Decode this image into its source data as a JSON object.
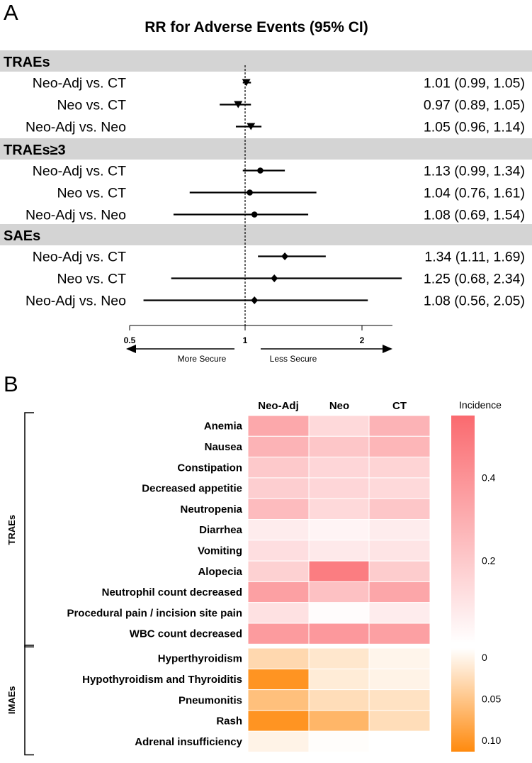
{
  "chart_data": [
    {
      "type": "forest",
      "panel": "A",
      "title": "RR for Adverse Events (95% CI)",
      "xlim": [
        0.5,
        2.25
      ],
      "ticks": [
        "0.5",
        "1",
        "2"
      ],
      "tick_values": [
        0.5,
        1,
        2
      ],
      "reference_line": 1,
      "direction_labels": {
        "left": "More Secure",
        "right": "Less Secure"
      },
      "groups": [
        {
          "name": "TRAEs",
          "marker": "triangle",
          "rows": [
            {
              "label": "Neo-Adj vs. CT",
              "rr": 1.01,
              "lo": 0.99,
              "hi": 1.05,
              "text": "1.01 (0.99, 1.05)"
            },
            {
              "label": "Neo vs. CT",
              "rr": 0.97,
              "lo": 0.89,
              "hi": 1.05,
              "text": "0.97 (0.89, 1.05)"
            },
            {
              "label": "Neo-Adj vs. Neo",
              "rr": 1.05,
              "lo": 0.96,
              "hi": 1.14,
              "text": "1.05 (0.96, 1.14)"
            }
          ]
        },
        {
          "name": "TRAEs≥3",
          "marker": "circle",
          "rows": [
            {
              "label": "Neo-Adj vs. CT",
              "rr": 1.13,
              "lo": 0.99,
              "hi": 1.34,
              "text": "1.13 (0.99, 1.34)"
            },
            {
              "label": "Neo vs. CT",
              "rr": 1.04,
              "lo": 0.76,
              "hi": 1.61,
              "text": "1.04 (0.76, 1.61)"
            },
            {
              "label": "Neo-Adj vs. Neo",
              "rr": 1.08,
              "lo": 0.69,
              "hi": 1.54,
              "text": "1.08 (0.69, 1.54)"
            }
          ]
        },
        {
          "name": "SAEs",
          "marker": "diamond",
          "rows": [
            {
              "label": "Neo-Adj vs. CT",
              "rr": 1.34,
              "lo": 1.11,
              "hi": 1.69,
              "text": "1.34 (1.11, 1.69)"
            },
            {
              "label": "Neo vs. CT",
              "rr": 1.25,
              "lo": 0.68,
              "hi": 2.34,
              "text": "1.25 (0.68, 2.34)"
            },
            {
              "label": "Neo-Adj vs. Neo",
              "rr": 1.08,
              "lo": 0.56,
              "hi": 2.05,
              "text": "1.08 (0.56, 2.05)"
            }
          ]
        }
      ]
    },
    {
      "type": "heatmap",
      "panel": "B",
      "columns": [
        "Neo-Adj",
        "Neo",
        "CT"
      ],
      "legend_title": "Incidence",
      "blocks": [
        {
          "name": "TRAEs",
          "color_low": "#ffffff",
          "color_high": "#fa6a6f",
          "scale_max": 0.55,
          "legend_ticks": [
            "0.4",
            "0.2"
          ],
          "legend_tick_values": [
            0.4,
            0.2
          ],
          "rows": [
            {
              "label": "Anemia",
              "values": [
                0.32,
                0.14,
                0.28
              ]
            },
            {
              "label": "Nausea",
              "values": [
                0.28,
                0.21,
                0.27
              ]
            },
            {
              "label": "Constipation",
              "values": [
                0.2,
                0.15,
                0.16
              ]
            },
            {
              "label": "Decreased appetitie",
              "values": [
                0.18,
                0.15,
                0.14
              ]
            },
            {
              "label": "Neutropenia",
              "values": [
                0.25,
                0.14,
                0.21
              ]
            },
            {
              "label": "Diarrhea",
              "values": [
                0.07,
                0.04,
                0.07
              ]
            },
            {
              "label": "Vomiting",
              "values": [
                0.12,
                0.08,
                0.1
              ]
            },
            {
              "label": "Alopecia",
              "values": [
                0.17,
                0.48,
                0.19
              ]
            },
            {
              "label": "Neutrophil count decreased",
              "values": [
                0.35,
                0.23,
                0.33
              ]
            },
            {
              "label": "Procedural pain / incision site pain",
              "values": [
                0.11,
                0.01,
                0.07
              ]
            },
            {
              "label": "WBC count decreased",
              "values": [
                0.37,
                0.38,
                0.35
              ]
            }
          ]
        },
        {
          "name": "IMAEs",
          "color_low": "#ffffff",
          "color_high": "#ff8a0e",
          "scale_max": 0.12,
          "legend_ticks": [
            "0",
            "0.05",
            "0.10"
          ],
          "legend_tick_values": [
            0,
            0.05,
            0.1
          ],
          "rows": [
            {
              "label": "Hyperthyroidism",
              "values": [
                0.04,
                0.025,
                0.01
              ]
            },
            {
              "label": "Hypothyroidism and Thyroiditis",
              "values": [
                0.11,
                0.02,
                0.012
              ]
            },
            {
              "label": "Pneumonitis",
              "values": [
                0.065,
                0.035,
                0.03
              ]
            },
            {
              "label": "Rash",
              "values": [
                0.11,
                0.075,
                0.035
              ]
            },
            {
              "label": "Adrenal insufficiency",
              "values": [
                0.012,
                0.002,
                null
              ]
            }
          ]
        }
      ]
    }
  ],
  "panel_labels": {
    "a": "A",
    "b": "B"
  }
}
